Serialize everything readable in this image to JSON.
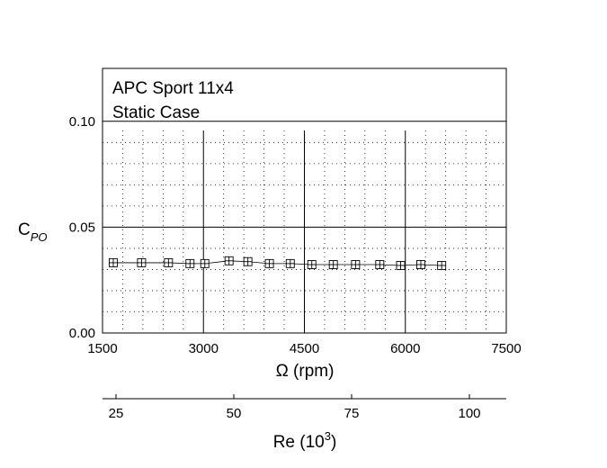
{
  "chart_data": {
    "type": "line",
    "title_lines": [
      "APC Sport 11x4",
      "Static Case"
    ],
    "ylabel": {
      "main": "C",
      "sub": "PO"
    },
    "xlabel": "Ω (rpm)",
    "xlim": [
      1500,
      7500
    ],
    "ylim": [
      0.0,
      0.125
    ],
    "x_ticks": [
      1500,
      3000,
      4500,
      6000,
      7500
    ],
    "x_tick_labels": [
      "1500",
      "3000",
      "4500",
      "6000",
      "7500"
    ],
    "y_ticks": [
      0.0,
      0.05,
      0.1
    ],
    "y_tick_labels": [
      "0.00",
      "0.05",
      "0.10"
    ],
    "grid": {
      "major": true,
      "minor": "dotted"
    },
    "series": [
      {
        "marker": "boxed-plus",
        "x": [
          1660,
          2080,
          2480,
          2800,
          3020,
          3380,
          3660,
          3980,
          4290,
          4610,
          4930,
          5260,
          5620,
          5930,
          6230,
          6540
        ],
        "y": [
          0.0332,
          0.0332,
          0.0332,
          0.0328,
          0.0328,
          0.0341,
          0.0337,
          0.0328,
          0.0328,
          0.0323,
          0.0323,
          0.0323,
          0.0323,
          0.0319,
          0.0323,
          0.0319
        ]
      }
    ],
    "secondary_axis": {
      "label": {
        "main": "Re (10",
        "sup": "3",
        "close": ")"
      },
      "ticks": [
        25,
        50,
        75,
        100
      ],
      "tick_labels": [
        "25",
        "50",
        "75",
        "100"
      ]
    }
  }
}
